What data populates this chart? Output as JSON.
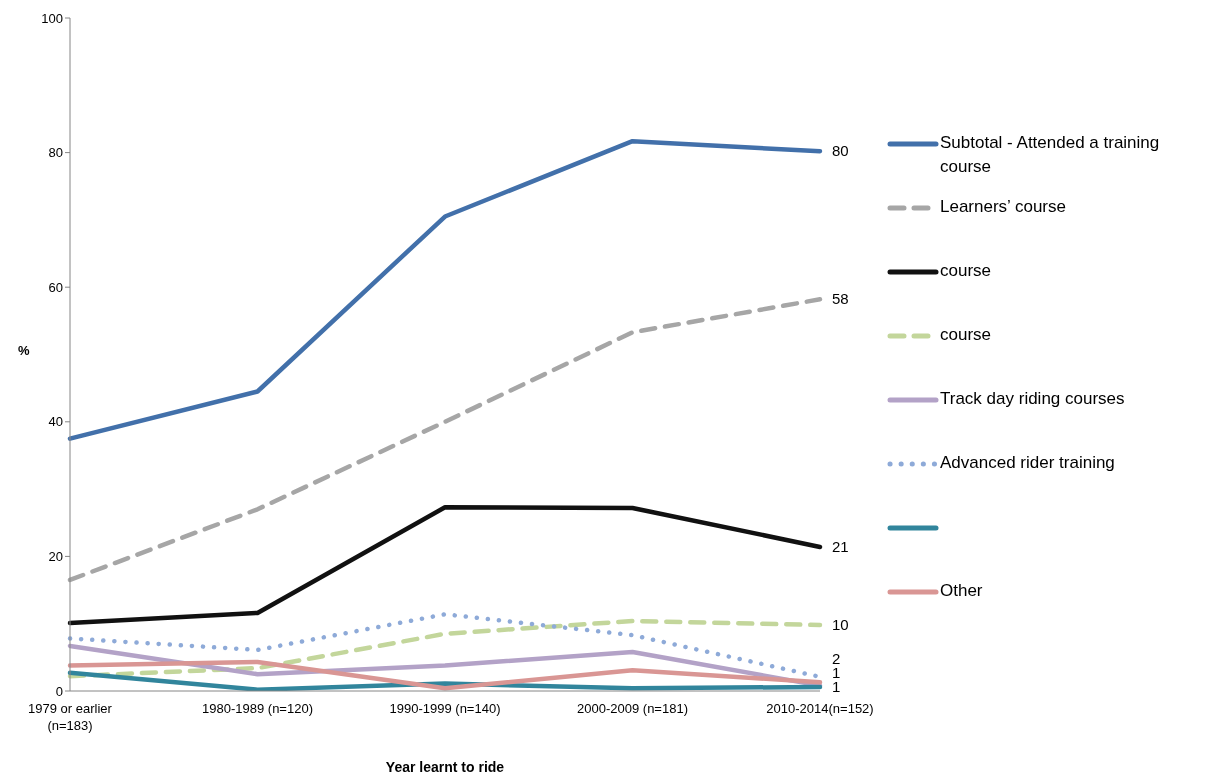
{
  "chart_data": {
    "type": "line",
    "xlabel": "Year learnt to ride",
    "ylabel": "%",
    "categories": [
      "1979 or earlier (n=183)",
      "1980-1989 (n=120)",
      "1990-1999 (n=140)",
      "2000-2009 (n=181)",
      "2010-2014(n=152)"
    ],
    "ylim": [
      0,
      100
    ],
    "yticks": [
      0,
      20,
      40,
      60,
      80,
      100
    ],
    "legend": "right",
    "marker": "none",
    "series": [
      {
        "name": "Subtotal - Attended a training course",
        "color": "#4270aa",
        "line_style": "solid",
        "values": [
          37.5,
          44.5,
          70.5,
          81.7,
          80.2
        ],
        "value_labels": [
          null,
          null,
          null,
          null,
          "80"
        ]
      },
      {
        "name": "Learners’ course",
        "color": "#a6a6a6",
        "line_style": "dashed",
        "values": [
          16.5,
          27,
          40,
          53.3,
          58.2
        ],
        "value_labels": [
          null,
          null,
          null,
          null,
          "58"
        ]
      },
      {
        "name": "course",
        "color": "#111111",
        "line_style": "solid",
        "values": [
          10.1,
          11.6,
          27.3,
          27.2,
          21.4
        ],
        "value_labels": [
          null,
          null,
          null,
          null,
          "21"
        ]
      },
      {
        "name": "course",
        "color": "#c3d69b",
        "line_style": "dashed",
        "values": [
          2.2,
          3.4,
          8.5,
          10.4,
          9.8
        ],
        "value_labels": [
          null,
          null,
          null,
          null,
          "10"
        ]
      },
      {
        "name": "Track day riding courses",
        "color": "#b3a2c7",
        "line_style": "solid",
        "values": [
          6.7,
          2.5,
          3.8,
          5.8,
          0.8
        ],
        "value_labels": [
          null,
          null,
          null,
          null,
          "1"
        ]
      },
      {
        "name": "Advanced rider training",
        "color": "#8eaad8",
        "line_style": "dotted",
        "values": [
          7.8,
          6.1,
          11.4,
          8.3,
          2.1
        ],
        "value_labels": [
          null,
          null,
          null,
          null,
          "2"
        ]
      },
      {
        "color": "#31859c",
        "line_style": "solid",
        "values": [
          2.7,
          0.2,
          1.1,
          0.4,
          0.6
        ],
        "value_labels": [
          null,
          null,
          null,
          null,
          "1"
        ]
      },
      {
        "name": "Other",
        "color": "#d99694",
        "line_style": "solid",
        "values": [
          3.8,
          4.3,
          0.4,
          3.1,
          1.3
        ]
      }
    ]
  }
}
